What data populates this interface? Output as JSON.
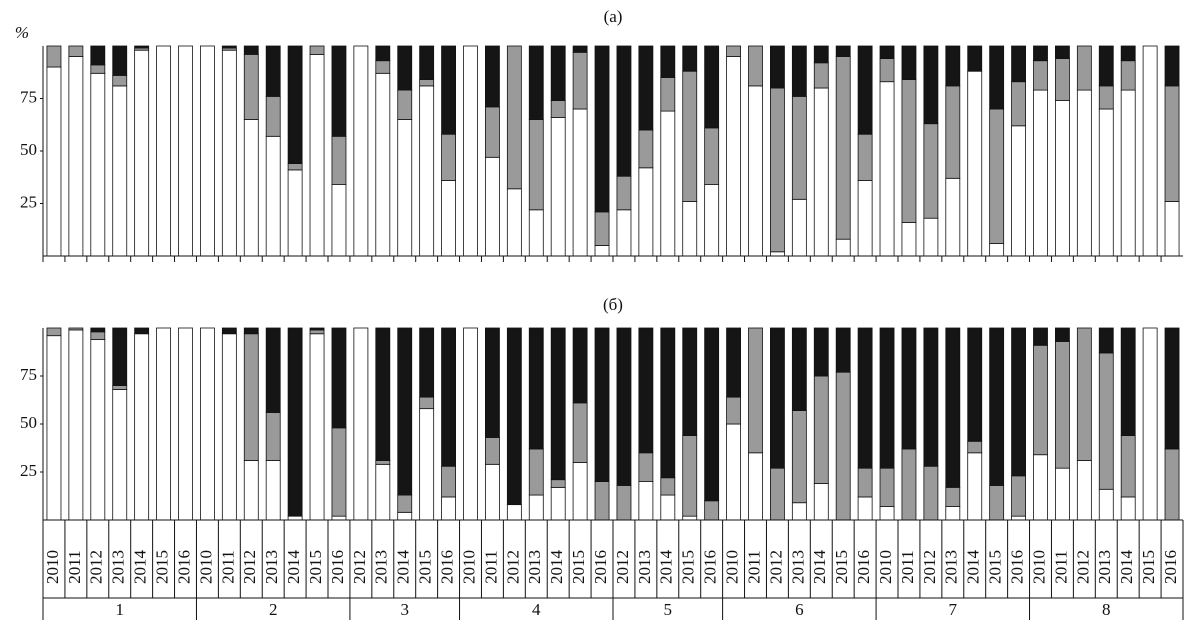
{
  "chart_data": {
    "type": "bar",
    "stacked": true,
    "ylabel": "%",
    "ylim": [
      0,
      100
    ],
    "yticks": [
      25,
      50,
      75
    ],
    "groups": [
      {
        "label": "1",
        "categories": [
          "2010",
          "2011",
          "2012",
          "2013",
          "2014",
          "2015",
          "2016"
        ]
      },
      {
        "label": "2",
        "categories": [
          "2010",
          "2011",
          "2012",
          "2013",
          "2014",
          "2015",
          "2016"
        ]
      },
      {
        "label": "3",
        "categories": [
          "2012",
          "2013",
          "2014",
          "2015",
          "2016"
        ]
      },
      {
        "label": "4",
        "categories": [
          "2010",
          "2011",
          "2012",
          "2013",
          "2014",
          "2015",
          "2016"
        ]
      },
      {
        "label": "5",
        "categories": [
          "2012",
          "2013",
          "2014",
          "2015",
          "2016"
        ]
      },
      {
        "label": "6",
        "categories": [
          "2010",
          "2011",
          "2012",
          "2013",
          "2014",
          "2015",
          "2016"
        ]
      },
      {
        "label": "7",
        "categories": [
          "2010",
          "2011",
          "2012",
          "2013",
          "2014",
          "2015",
          "2016"
        ]
      },
      {
        "label": "8",
        "categories": [
          "2010",
          "2011",
          "2012",
          "2013",
          "2014",
          "2015",
          "2016"
        ]
      }
    ],
    "panels": [
      {
        "title": "(a)",
        "series": [
          {
            "color": "#ffffff",
            "values": [
              90,
              95,
              87,
              81,
              98,
              100,
              100,
              100,
              98,
              65,
              57,
              41,
              96,
              34,
              100,
              87,
              65,
              81,
              36,
              100,
              47,
              32,
              22,
              66,
              70,
              5,
              22,
              42,
              69,
              26,
              34,
              95,
              81,
              2,
              27,
              80,
              8,
              36,
              83,
              16,
              18,
              37,
              88,
              6,
              62,
              79,
              74,
              79,
              70,
              79,
              100,
              26
            ]
          },
          {
            "color": "#9a9a9a",
            "values": [
              10,
              5,
              4,
              5,
              1,
              0,
              0,
              0,
              1,
              31,
              19,
              3,
              4,
              23,
              0,
              6,
              14,
              3,
              22,
              0,
              24,
              68,
              43,
              8,
              27,
              16,
              16,
              18,
              16,
              62,
              27,
              5,
              19,
              78,
              49,
              12,
              87,
              22,
              11,
              68,
              45,
              44,
              0,
              64,
              21,
              14,
              20,
              21,
              11,
              14,
              0,
              55
            ]
          },
          {
            "color": "#151515",
            "values": [
              0,
              0,
              9,
              14,
              1,
              0,
              0,
              0,
              1,
              4,
              24,
              56,
              0,
              43,
              0,
              7,
              21,
              16,
              42,
              0,
              29,
              0,
              35,
              26,
              3,
              79,
              62,
              40,
              15,
              12,
              39,
              0,
              0,
              20,
              24,
              8,
              5,
              42,
              6,
              16,
              37,
              19,
              12,
              30,
              17,
              7,
              6,
              0,
              19,
              7,
              0,
              19
            ]
          }
        ]
      },
      {
        "title": "(б)",
        "series": [
          {
            "color": "#ffffff",
            "values": [
              96,
              99,
              94,
              68,
              97,
              100,
              100,
              100,
              97,
              31,
              31,
              2,
              97,
              2,
              100,
              29,
              4,
              58,
              12,
              100,
              29,
              8,
              13,
              17,
              30,
              0,
              0,
              20,
              13,
              2,
              0,
              50,
              35,
              0,
              9,
              19,
              0,
              12,
              7,
              0,
              0,
              7,
              35,
              0,
              2,
              34,
              27,
              31,
              16,
              12,
              100,
              0
            ]
          },
          {
            "color": "#9a9a9a",
            "values": [
              4,
              1,
              4,
              2,
              0,
              0,
              0,
              0,
              0,
              66,
              25,
              0,
              2,
              46,
              0,
              2,
              9,
              6,
              16,
              0,
              14,
              0,
              24,
              4,
              31,
              20,
              18,
              15,
              9,
              42,
              10,
              14,
              65,
              27,
              48,
              56,
              77,
              15,
              20,
              37,
              28,
              10,
              6,
              18,
              21,
              57,
              66,
              69,
              71,
              32,
              0,
              37
            ]
          },
          {
            "color": "#151515",
            "values": [
              0,
              0,
              2,
              30,
              3,
              0,
              0,
              0,
              3,
              3,
              44,
              98,
              1,
              52,
              0,
              69,
              87,
              36,
              72,
              0,
              57,
              92,
              63,
              79,
              39,
              80,
              82,
              65,
              78,
              56,
              90,
              36,
              0,
              73,
              43,
              25,
              23,
              73,
              73,
              63,
              72,
              83,
              59,
              82,
              77,
              9,
              7,
              0,
              13,
              56,
              0,
              63
            ]
          }
        ]
      }
    ]
  }
}
